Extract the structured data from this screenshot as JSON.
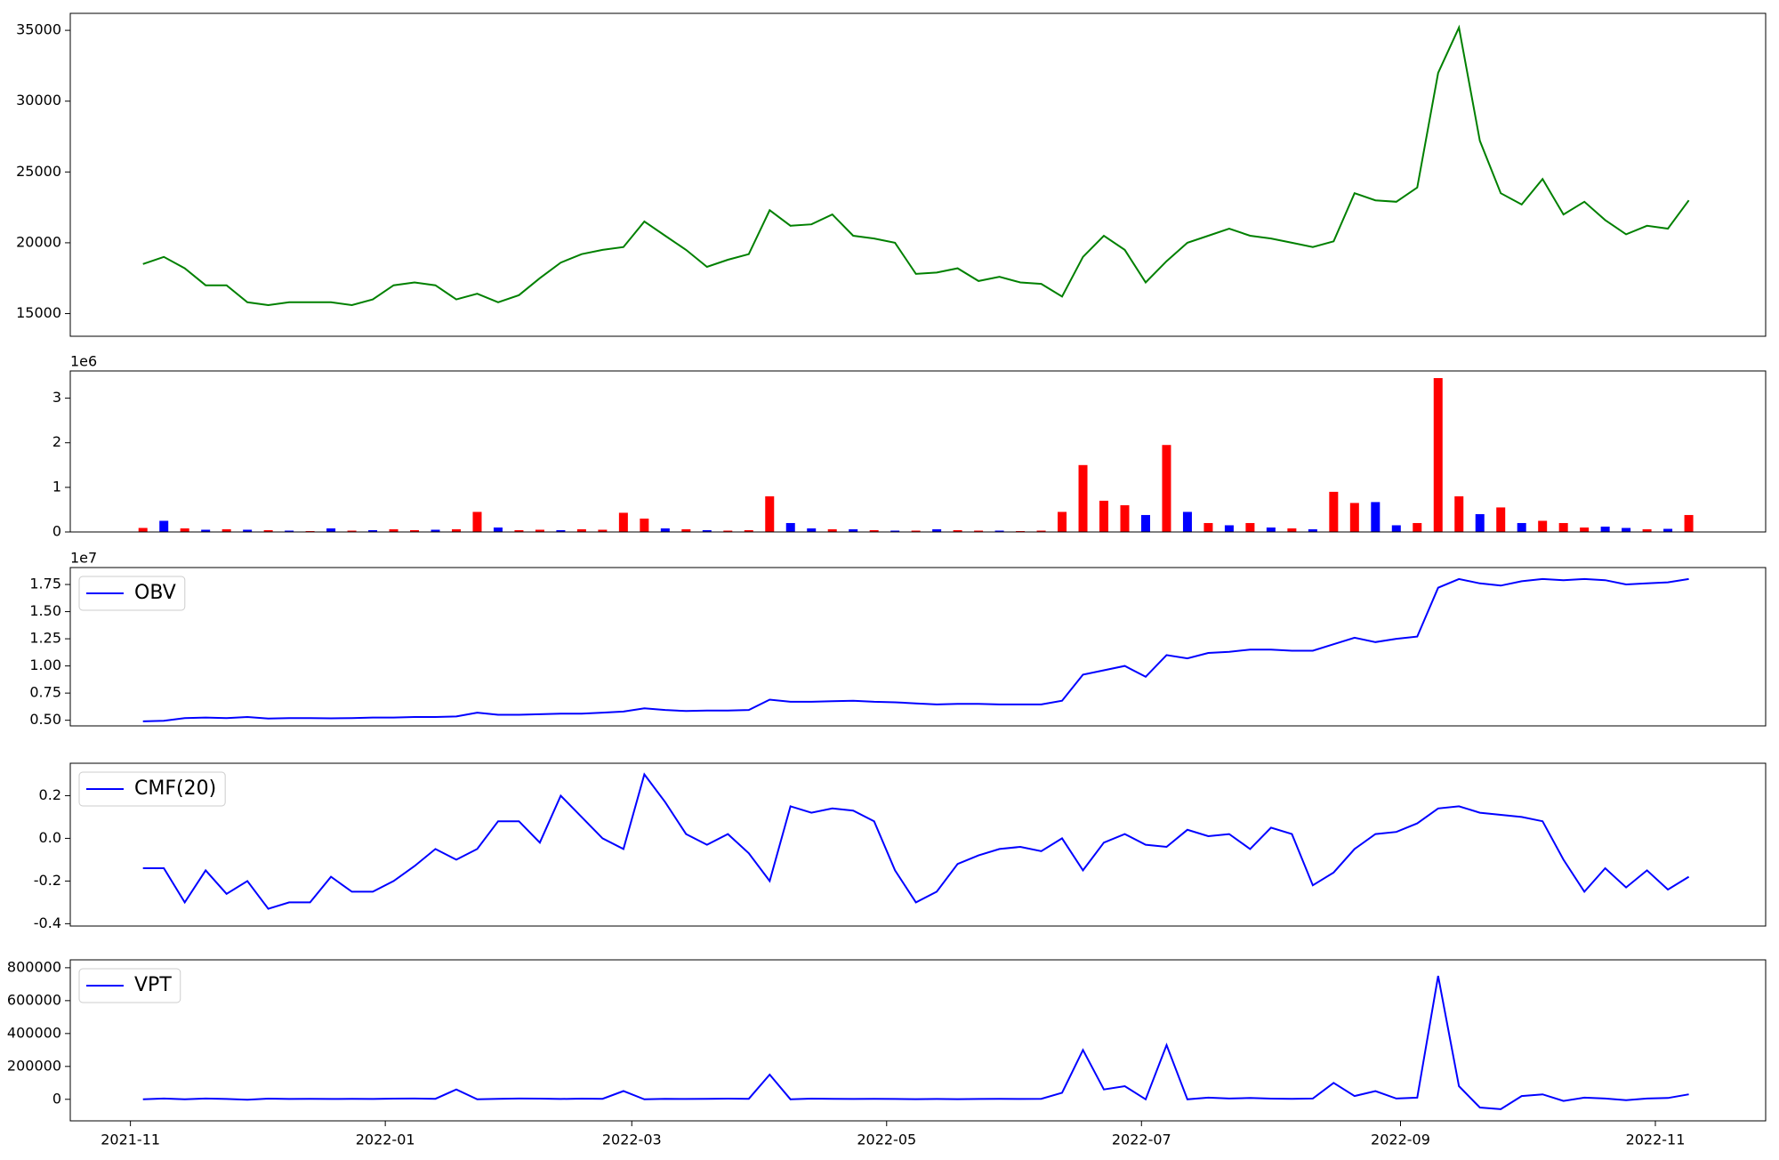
{
  "chart_data": [
    {
      "type": "line",
      "x": [
        3,
        8,
        13,
        18,
        23,
        28,
        33,
        38,
        43,
        48,
        53,
        58,
        63,
        68,
        73,
        78,
        83,
        88,
        93,
        98,
        103,
        108,
        113,
        118,
        123,
        128,
        133,
        138,
        143,
        148,
        153,
        158,
        163,
        168,
        173,
        178,
        183,
        188,
        193,
        198,
        203,
        208,
        213,
        218,
        223,
        228,
        233,
        238,
        243,
        248,
        253,
        258,
        263,
        268,
        273,
        278,
        283,
        288,
        293,
        298,
        303,
        308,
        313,
        318,
        323,
        328,
        333,
        338,
        343,
        348,
        353,
        358,
        363,
        368,
        373
      ],
      "xlim": [
        -14.4,
        391.4
      ],
      "series": [
        {
          "color": "green",
          "values": [
            18500,
            19000,
            18200,
            17000,
            17000,
            15800,
            15600,
            15800,
            15800,
            15800,
            15600,
            16000,
            17000,
            17200,
            17000,
            16000,
            16400,
            15800,
            16300,
            17500,
            18600,
            19200,
            19500,
            19700,
            21500,
            20500,
            19500,
            18300,
            18800,
            19200,
            22300,
            21200,
            21300,
            22000,
            20500,
            20300,
            20000,
            17800,
            17900,
            18200,
            17300,
            17600,
            17200,
            17100,
            16200,
            19000,
            20500,
            19500,
            17200,
            18700,
            20000,
            20500,
            21000,
            20500,
            20300,
            20000,
            19700,
            20100,
            23500,
            23000,
            22900,
            23900,
            32000,
            35200,
            27200,
            23500,
            22700,
            24500,
            22000,
            22900,
            21600,
            20600,
            21200,
            21000,
            23000
          ]
        }
      ],
      "ylim": [
        13400,
        36200
      ],
      "yticks": [
        15000,
        20000,
        25000,
        30000,
        35000
      ]
    },
    {
      "type": "bar",
      "x": [
        3,
        8,
        13,
        18,
        23,
        28,
        33,
        38,
        43,
        48,
        53,
        58,
        63,
        68,
        73,
        78,
        83,
        88,
        93,
        98,
        103,
        108,
        113,
        118,
        123,
        128,
        133,
        138,
        143,
        148,
        153,
        158,
        163,
        168,
        173,
        178,
        183,
        188,
        193,
        198,
        203,
        208,
        213,
        218,
        223,
        228,
        233,
        238,
        243,
        248,
        253,
        258,
        263,
        268,
        273,
        278,
        283,
        288,
        293,
        298,
        303,
        308,
        313,
        318,
        323,
        328,
        333,
        338,
        343,
        348,
        353,
        358,
        363,
        368,
        373
      ],
      "xlim": [
        -14.4,
        391.4
      ],
      "values": [
        90000,
        250000,
        80000,
        50000,
        60000,
        50000,
        40000,
        30000,
        20000,
        80000,
        30000,
        40000,
        60000,
        40000,
        50000,
        60000,
        450000,
        100000,
        40000,
        50000,
        40000,
        60000,
        50000,
        430000,
        300000,
        80000,
        60000,
        40000,
        30000,
        40000,
        800000,
        200000,
        80000,
        60000,
        60000,
        40000,
        30000,
        30000,
        60000,
        40000,
        30000,
        30000,
        20000,
        30000,
        450000,
        1500000,
        700000,
        600000,
        380000,
        1950000,
        450000,
        200000,
        150000,
        200000,
        100000,
        80000,
        60000,
        900000,
        650000,
        670000,
        150000,
        200000,
        3450000,
        800000,
        400000,
        550000,
        200000,
        250000,
        200000,
        100000,
        120000,
        90000,
        60000,
        70000,
        380000
      ],
      "colors": [
        "red",
        "blue",
        "red",
        "blue",
        "red",
        "blue",
        "red",
        "blue",
        "red",
        "blue",
        "red",
        "blue",
        "red",
        "red",
        "blue",
        "red",
        "red",
        "blue",
        "red",
        "red",
        "blue",
        "red",
        "red",
        "red",
        "red",
        "blue",
        "red",
        "blue",
        "red",
        "red",
        "red",
        "blue",
        "blue",
        "red",
        "blue",
        "red",
        "blue",
        "red",
        "blue",
        "red",
        "red",
        "blue",
        "red",
        "red",
        "red",
        "red",
        "red",
        "red",
        "blue",
        "red",
        "blue",
        "red",
        "blue",
        "red",
        "blue",
        "red",
        "blue",
        "red",
        "red",
        "blue",
        "blue",
        "red",
        "red",
        "red",
        "blue",
        "red",
        "blue",
        "red",
        "red",
        "red",
        "blue",
        "blue",
        "red",
        "blue",
        "red"
      ],
      "ylim": [
        0,
        3610000
      ],
      "offset_text": "1e6",
      "yticks": [
        {
          "value": 0,
          "label": "0"
        },
        {
          "value": 1000000,
          "label": "1"
        },
        {
          "value": 2000000,
          "label": "2"
        },
        {
          "value": 3000000,
          "label": "3"
        }
      ]
    },
    {
      "type": "line",
      "x": [
        3,
        8,
        13,
        18,
        23,
        28,
        33,
        38,
        43,
        48,
        53,
        58,
        63,
        68,
        73,
        78,
        83,
        88,
        93,
        98,
        103,
        108,
        113,
        118,
        123,
        128,
        133,
        138,
        143,
        148,
        153,
        158,
        163,
        168,
        173,
        178,
        183,
        188,
        193,
        198,
        203,
        208,
        213,
        218,
        223,
        228,
        233,
        238,
        243,
        248,
        253,
        258,
        263,
        268,
        273,
        278,
        283,
        288,
        293,
        298,
        303,
        308,
        313,
        318,
        323,
        328,
        333,
        338,
        343,
        348,
        353,
        358,
        363,
        368,
        373
      ],
      "xlim": [
        -14.4,
        391.4
      ],
      "legend": "upper left",
      "series": [
        {
          "name": "OBV",
          "color": "blue",
          "values": [
            4900000,
            4950000,
            5200000,
            5250000,
            5200000,
            5300000,
            5150000,
            5200000,
            5200000,
            5180000,
            5200000,
            5250000,
            5250000,
            5300000,
            5300000,
            5350000,
            5700000,
            5500000,
            5500000,
            5550000,
            5600000,
            5600000,
            5700000,
            5800000,
            6100000,
            5950000,
            5850000,
            5900000,
            5900000,
            5950000,
            6900000,
            6700000,
            6700000,
            6750000,
            6800000,
            6700000,
            6650000,
            6550000,
            6450000,
            6500000,
            6500000,
            6450000,
            6450000,
            6450000,
            6800000,
            9200000,
            9600000,
            10000000,
            9000000,
            11000000,
            10700000,
            11200000,
            11300000,
            11500000,
            11500000,
            11400000,
            11400000,
            12000000,
            12600000,
            12200000,
            12500000,
            12700000,
            17200000,
            18000000,
            17600000,
            17400000,
            17800000,
            18000000,
            17900000,
            18000000,
            17900000,
            17500000,
            17600000,
            17700000,
            18000000
          ]
        }
      ],
      "ylim": [
        4480000,
        19060000
      ],
      "offset_text": "1e7",
      "yticks": [
        {
          "value": 5000000,
          "label": "0.50"
        },
        {
          "value": 7500000,
          "label": "0.75"
        },
        {
          "value": 10000000,
          "label": "1.00"
        },
        {
          "value": 12500000,
          "label": "1.25"
        },
        {
          "value": 15000000,
          "label": "1.50"
        },
        {
          "value": 17500000,
          "label": "1.75"
        }
      ]
    },
    {
      "type": "line",
      "x": [
        3,
        8,
        13,
        18,
        23,
        28,
        33,
        38,
        43,
        48,
        53,
        58,
        63,
        68,
        73,
        78,
        83,
        88,
        93,
        98,
        103,
        108,
        113,
        118,
        123,
        128,
        133,
        138,
        143,
        148,
        153,
        158,
        163,
        168,
        173,
        178,
        183,
        188,
        193,
        198,
        203,
        208,
        213,
        218,
        223,
        228,
        233,
        238,
        243,
        248,
        253,
        258,
        263,
        268,
        273,
        278,
        283,
        288,
        293,
        298,
        303,
        308,
        313,
        318,
        323,
        328,
        333,
        338,
        343,
        348,
        353,
        358,
        363,
        368,
        373
      ],
      "xlim": [
        -14.4,
        391.4
      ],
      "legend": "upper left",
      "series": [
        {
          "name": "CMF(20)",
          "color": "blue",
          "values": [
            -0.14,
            -0.14,
            -0.3,
            -0.15,
            -0.26,
            -0.2,
            -0.33,
            -0.3,
            -0.3,
            -0.18,
            -0.25,
            -0.25,
            -0.2,
            -0.13,
            -0.05,
            -0.1,
            -0.05,
            0.08,
            0.08,
            -0.02,
            0.2,
            0.1,
            0.0,
            -0.05,
            0.3,
            0.17,
            0.02,
            -0.03,
            0.02,
            -0.07,
            -0.2,
            0.15,
            0.12,
            0.14,
            0.13,
            0.08,
            -0.15,
            -0.3,
            -0.25,
            -0.12,
            -0.08,
            -0.05,
            -0.04,
            -0.06,
            0.0,
            -0.15,
            -0.02,
            0.02,
            -0.03,
            -0.04,
            0.04,
            0.01,
            0.02,
            -0.05,
            0.05,
            0.02,
            -0.22,
            -0.16,
            -0.05,
            0.02,
            0.03,
            0.07,
            0.14,
            0.15,
            0.12,
            0.11,
            0.1,
            0.08,
            -0.1,
            -0.25,
            -0.14,
            -0.23,
            -0.15,
            -0.24,
            -0.18
          ]
        }
      ],
      "ylim": [
        -0.411,
        0.352
      ],
      "yticks": [
        -0.4,
        -0.2,
        {
          "value": 0,
          "label": "0.0"
        },
        0.2
      ]
    },
    {
      "type": "line",
      "x": [
        3,
        8,
        13,
        18,
        23,
        28,
        33,
        38,
        43,
        48,
        53,
        58,
        63,
        68,
        73,
        78,
        83,
        88,
        93,
        98,
        103,
        108,
        113,
        118,
        123,
        128,
        133,
        138,
        143,
        148,
        153,
        158,
        163,
        168,
        173,
        178,
        183,
        188,
        193,
        198,
        203,
        208,
        213,
        218,
        223,
        228,
        233,
        238,
        243,
        248,
        253,
        258,
        263,
        268,
        273,
        278,
        283,
        288,
        293,
        298,
        303,
        308,
        313,
        318,
        323,
        328,
        333,
        338,
        343,
        348,
        353,
        358,
        363,
        368,
        373
      ],
      "xlim": [
        -14.4,
        391.4
      ],
      "legend": "upper left",
      "series": [
        {
          "name": "VPT",
          "color": "blue",
          "values": [
            0,
            5000,
            0,
            5000,
            2000,
            -3000,
            4000,
            2000,
            3000,
            2000,
            3000,
            2000,
            4000,
            5000,
            3000,
            60000,
            0,
            3000,
            5000,
            4000,
            2000,
            4000,
            3000,
            50000,
            0,
            3000,
            2000,
            3000,
            4000,
            3000,
            150000,
            0,
            4000,
            3000,
            2000,
            3000,
            2000,
            1000,
            2000,
            1000,
            2000,
            3000,
            2000,
            3000,
            40000,
            300000,
            60000,
            80000,
            0,
            330000,
            0,
            10000,
            5000,
            8000,
            4000,
            3000,
            5000,
            100000,
            20000,
            50000,
            5000,
            10000,
            750000,
            80000,
            -50000,
            -60000,
            20000,
            30000,
            -10000,
            10000,
            5000,
            -5000,
            5000,
            8000,
            30000
          ]
        }
      ],
      "ylim": [
        -131000,
        848000
      ],
      "yticks": [
        0,
        200000,
        400000,
        600000,
        800000
      ],
      "xticks": [
        {
          "value": 0,
          "label": "2021-11"
        },
        {
          "value": 61,
          "label": "2022-01"
        },
        {
          "value": 120,
          "label": "2022-03"
        },
        {
          "value": 181,
          "label": "2022-05"
        },
        {
          "value": 242,
          "label": "2022-07"
        },
        {
          "value": 304,
          "label": "2022-09"
        },
        {
          "value": 365,
          "label": "2022-11"
        }
      ]
    }
  ]
}
